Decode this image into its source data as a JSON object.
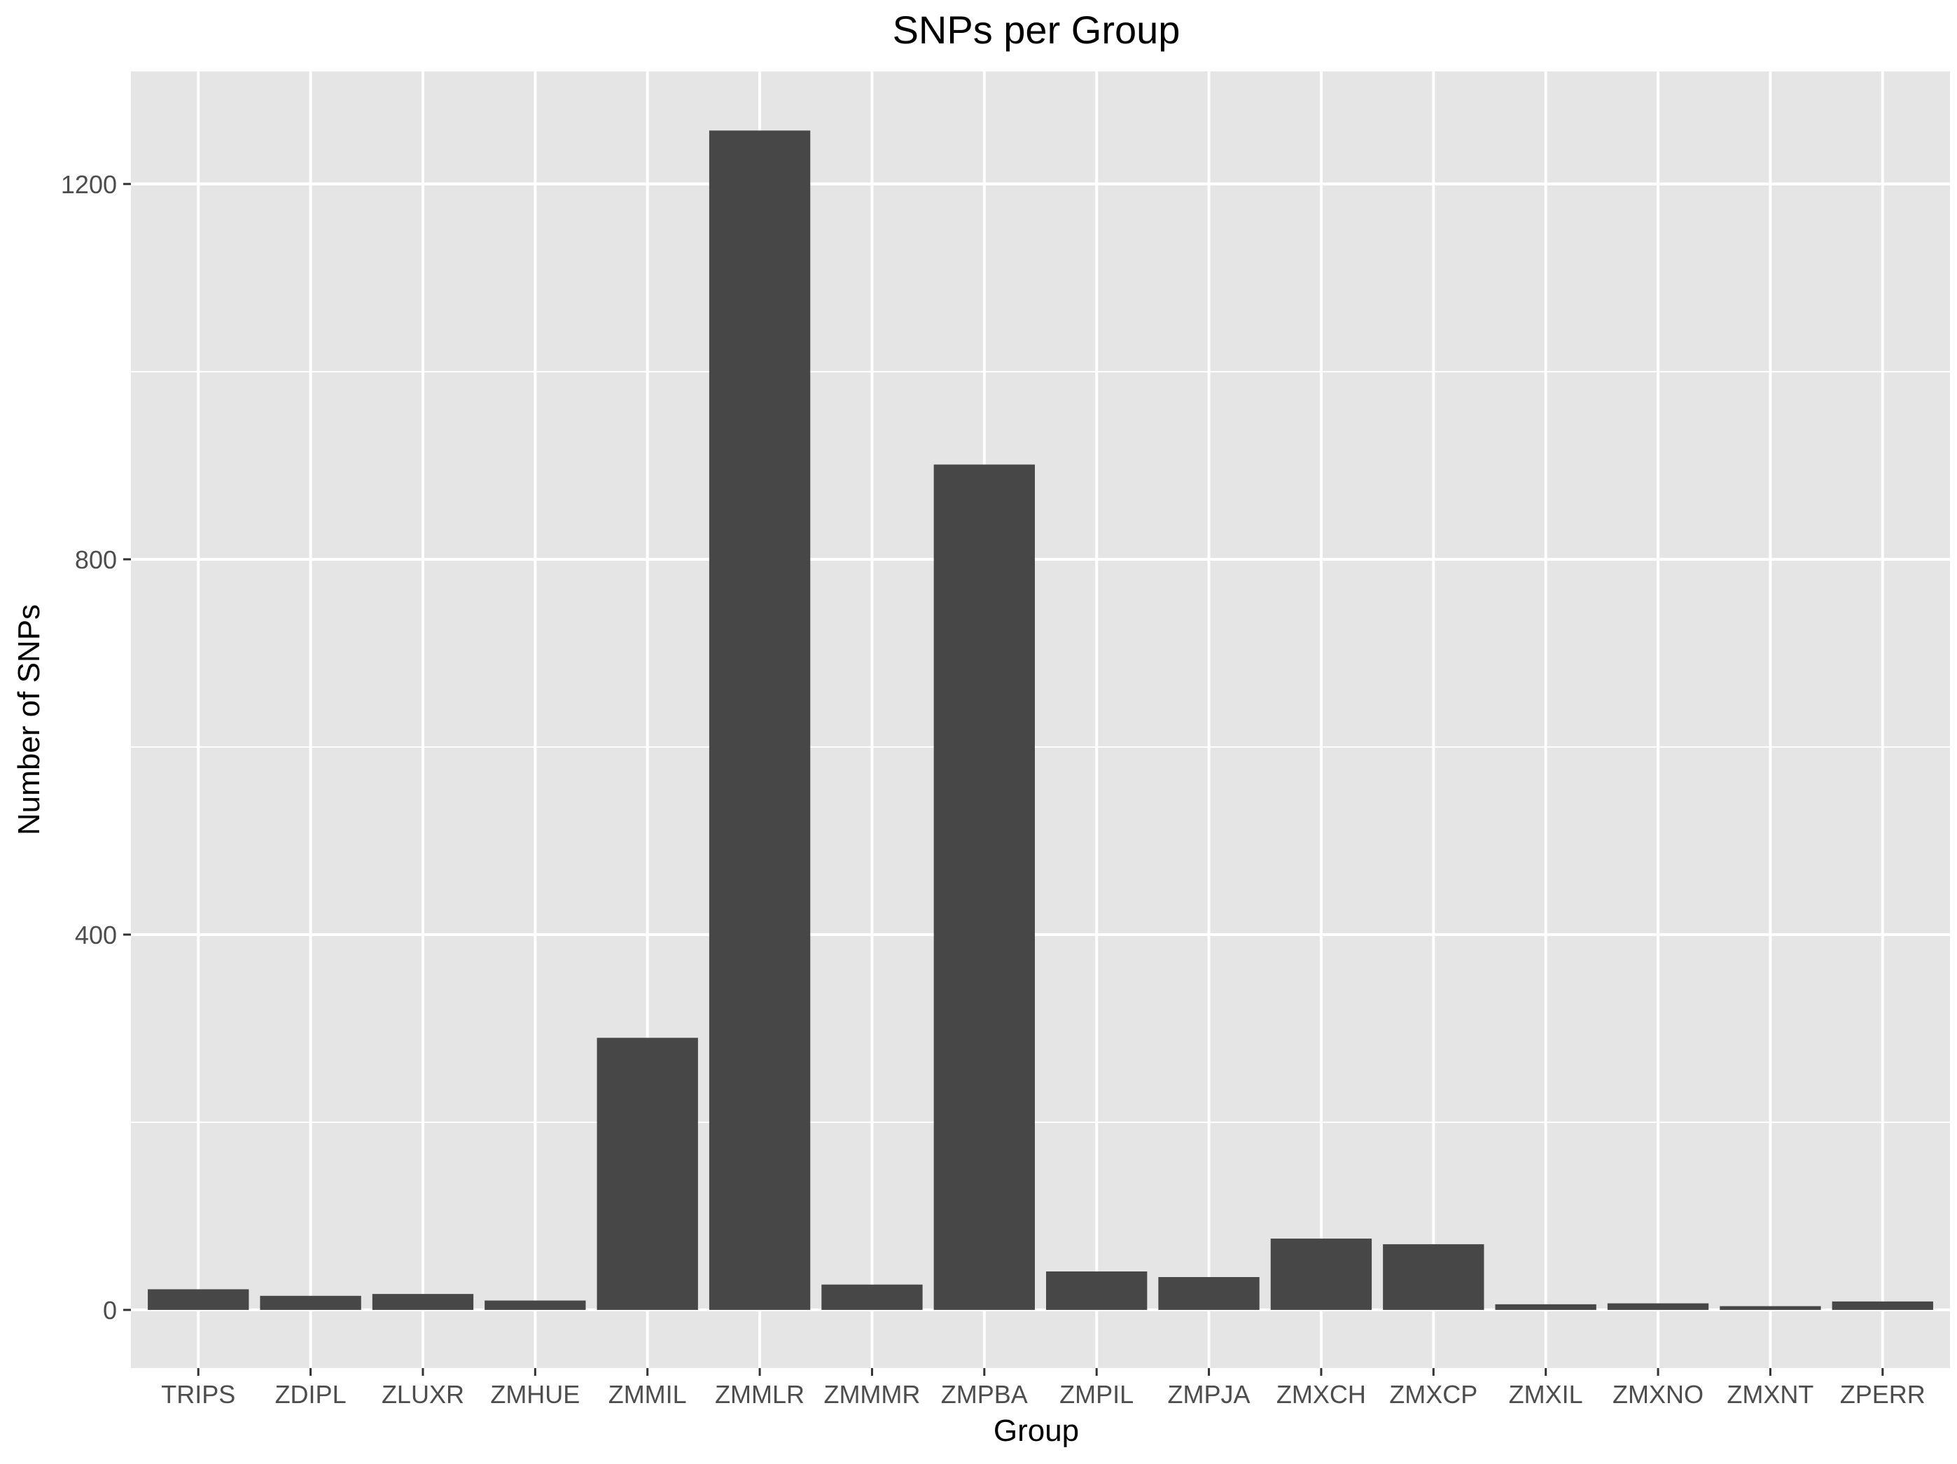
{
  "chart_data": {
    "type": "bar",
    "title": "SNPs per Group",
    "xlabel": "Group",
    "ylabel": "Number of SNPs",
    "categories": [
      "TRIPS",
      "ZDIPL",
      "ZLUXR",
      "ZMHUE",
      "ZMMIL",
      "ZMMLR",
      "ZMMMR",
      "ZMPBA",
      "ZMPIL",
      "ZMPJA",
      "ZMXCH",
      "ZMXCP",
      "ZMXIL",
      "ZMXNO",
      "ZMXNT",
      "ZPERR"
    ],
    "values": [
      22,
      15,
      17,
      10,
      290,
      1257,
      27,
      901,
      41,
      35,
      76,
      70,
      6,
      7,
      4,
      9
    ],
    "ylim": [
      -62,
      1320
    ],
    "yticks": [
      0,
      400,
      800,
      1200
    ],
    "yticks_labels": [
      "0",
      "400",
      "800",
      "1200"
    ],
    "grid": true,
    "legend": "none",
    "colors": {
      "bar": "#474747",
      "panel": "#e5e5e5",
      "grid": "#ffffff",
      "tick": "#333333"
    }
  }
}
